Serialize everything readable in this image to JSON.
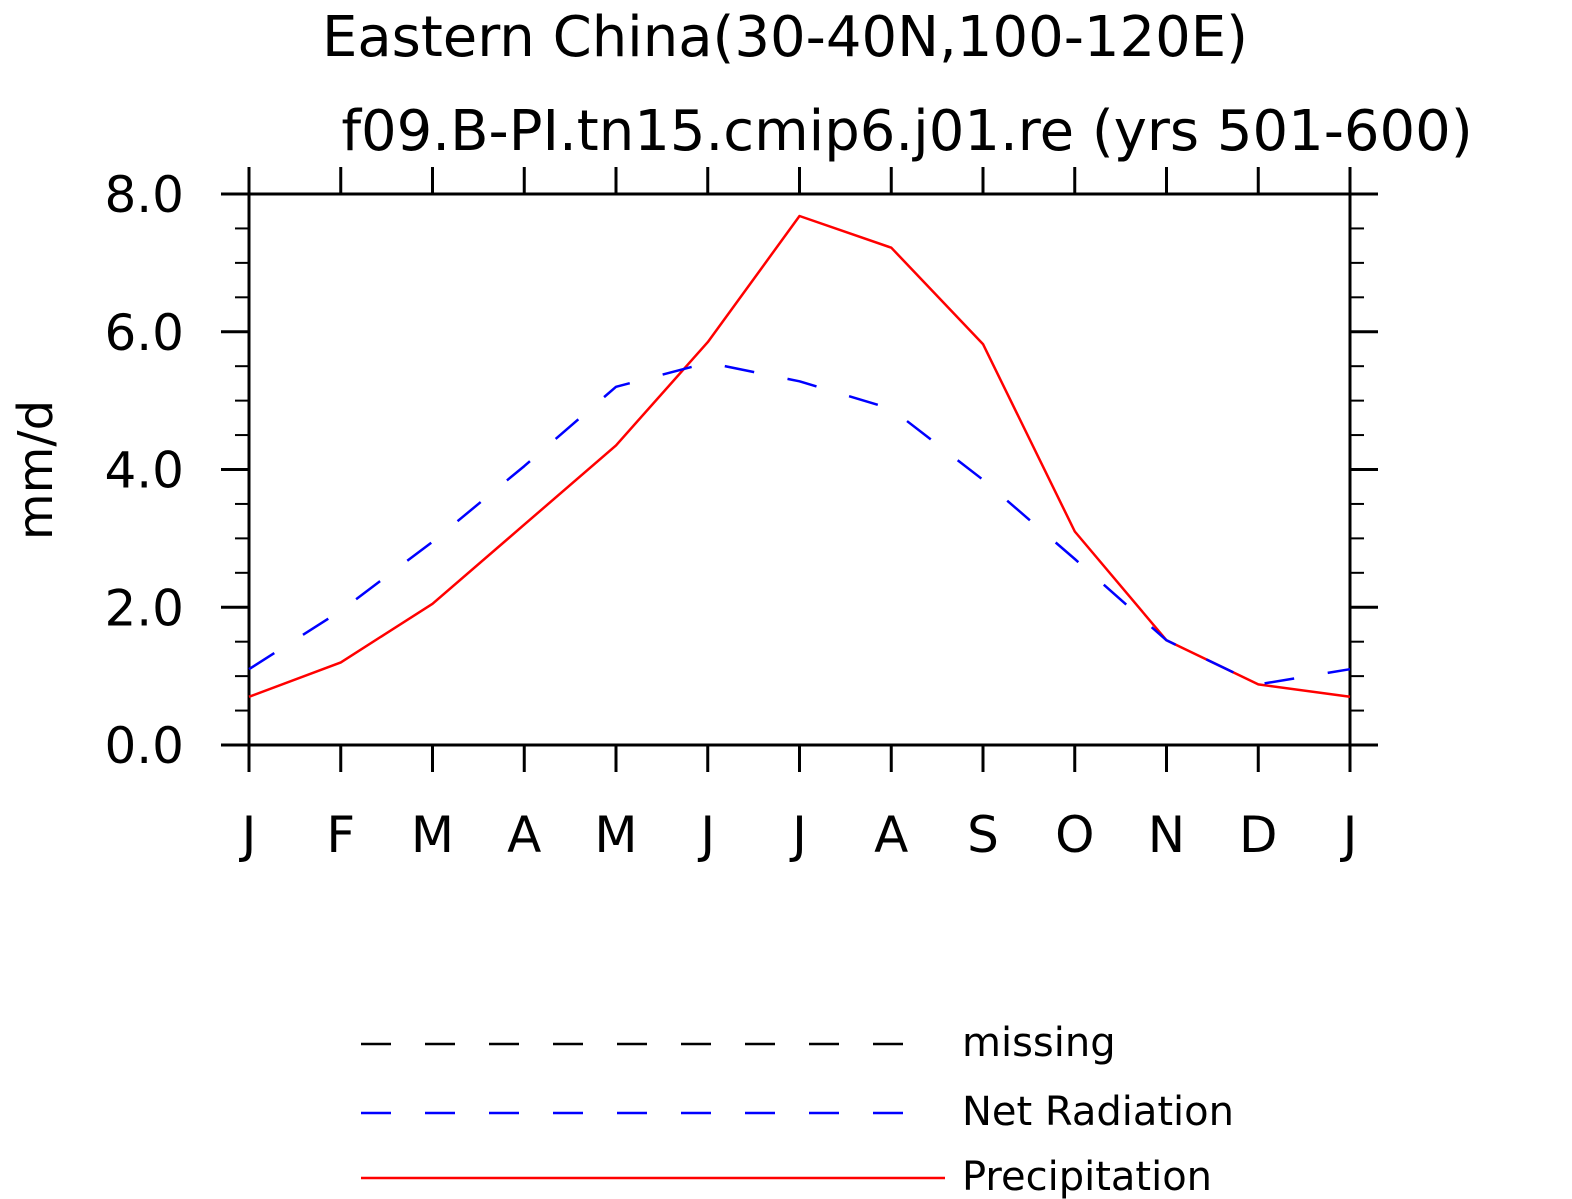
{
  "chart_data": {
    "type": "line",
    "title": "Eastern China(30-40N,100-120E)",
    "subtitle": "f09.B-PI.tn15.cmip6.j01.re (yrs 501-600)",
    "xlabel": "",
    "ylabel": "mm/d",
    "categories": [
      "J",
      "F",
      "M",
      "A",
      "M",
      "J",
      "J",
      "A",
      "S",
      "O",
      "N",
      "D",
      "J"
    ],
    "ylim": [
      0,
      8
    ],
    "yticks": [
      "0.0",
      "2.0",
      "4.0",
      "6.0",
      "8.0"
    ],
    "grid": false,
    "legend_position": "bottom",
    "series": [
      {
        "name": "Precipitation",
        "color": "#ff0000",
        "dash": "solid",
        "values": [
          0.7,
          1.2,
          2.05,
          3.2,
          4.35,
          5.85,
          7.68,
          7.22,
          5.82,
          3.1,
          1.52,
          0.88,
          0.7
        ]
      },
      {
        "name": "Net Radiation",
        "color": "#0000ff",
        "dash": "dashed",
        "values": [
          1.1,
          1.95,
          2.95,
          4.05,
          5.2,
          5.55,
          5.28,
          4.88,
          3.85,
          2.7,
          1.52,
          0.88,
          1.1
        ]
      }
    ],
    "legend": [
      {
        "label": "missing",
        "color": "#000000",
        "dash": "dashed"
      },
      {
        "label": "Net Radiation",
        "color": "#0000ff",
        "dash": "dashed"
      },
      {
        "label": "Precipitation",
        "color": "#ff0000",
        "dash": "solid"
      }
    ]
  }
}
